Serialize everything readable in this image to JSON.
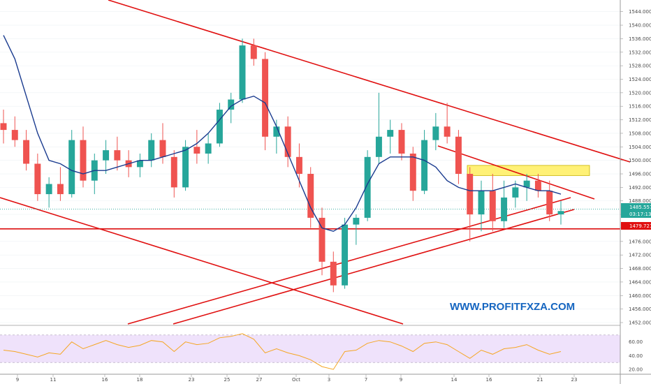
{
  "watermark": "WWW.PROFITFXZA.COM",
  "colors": {
    "up": "#26a69a",
    "down": "#ef5350",
    "ma": "#1a3b8f",
    "trendline": "#e01010",
    "zone": "#fff176",
    "rsi": "#f5a623",
    "rsi_band": "#efe2fb",
    "price_tag": "#26a69a",
    "level_tag": "#e01010"
  },
  "chart_data": {
    "type": "candlestick",
    "price_axis": {
      "ylim": [
        1452,
        1546
      ],
      "ticks": [
        "1544.000",
        "1540.000",
        "1536.000",
        "1532.000",
        "1528.000",
        "1524.000",
        "1520.000",
        "1516.000",
        "1512.000",
        "1508.000",
        "1504.000",
        "1500.000",
        "1496.000",
        "1492.000",
        "1488.000",
        "1484.000",
        "1480.000",
        "1476.000",
        "1472.000",
        "1468.000",
        "1464.000",
        "1460.000",
        "1456.000",
        "1452.000"
      ]
    },
    "rsi_axis": {
      "ylim": [
        15,
        80
      ],
      "ticks": [
        "60.00",
        "40.00",
        "20.00"
      ],
      "band": [
        30,
        70
      ]
    },
    "date_ticks": [
      "9",
      "11",
      "16",
      "18",
      "23",
      "25",
      "27",
      "Oct",
      "3",
      "7",
      "9",
      "14",
      "16",
      "21",
      "23"
    ],
    "last_price": {
      "value": 1485.557,
      "label": "1485.557",
      "countdown": "03:17:13"
    },
    "horizontal_level": {
      "value": 1479.721,
      "label": "1479.721"
    },
    "moving_average": [
      1537,
      1530,
      1519,
      1508,
      1500,
      1499,
      1497,
      1496,
      1497,
      1497,
      1498,
      1499,
      1500,
      1500,
      1501,
      1502,
      1503,
      1505,
      1508,
      1512,
      1516,
      1518,
      1519,
      1517,
      1510,
      1502,
      1494,
      1486,
      1480,
      1479,
      1481,
      1486,
      1493,
      1499,
      1501,
      1501,
      1501,
      1500,
      1498,
      1494,
      1492,
      1491,
      1491,
      1491,
      1492,
      1493,
      1492,
      1491,
      1491,
      1490
    ],
    "candles": [
      [
        1511,
        1515,
        1505,
        1509
      ],
      [
        1509,
        1513,
        1504,
        1506
      ],
      [
        1506,
        1509,
        1497,
        1499
      ],
      [
        1499,
        1502,
        1488,
        1490
      ],
      [
        1490,
        1495,
        1486,
        1493
      ],
      [
        1493,
        1498,
        1488,
        1490
      ],
      [
        1490,
        1509,
        1489,
        1506
      ],
      [
        1506,
        1510,
        1492,
        1494
      ],
      [
        1494,
        1502,
        1490,
        1500
      ],
      [
        1500,
        1506,
        1496,
        1503
      ],
      [
        1503,
        1507,
        1497,
        1500
      ],
      [
        1500,
        1503,
        1495,
        1498
      ],
      [
        1498,
        1502,
        1495,
        1500
      ],
      [
        1500,
        1508,
        1498,
        1506
      ],
      [
        1506,
        1511,
        1499,
        1501
      ],
      [
        1501,
        1503,
        1489,
        1492
      ],
      [
        1492,
        1506,
        1491,
        1504
      ],
      [
        1504,
        1509,
        1499,
        1502
      ],
      [
        1502,
        1508,
        1499,
        1505
      ],
      [
        1505,
        1517,
        1504,
        1515
      ],
      [
        1515,
        1520,
        1511,
        1518
      ],
      [
        1518,
        1536,
        1517,
        1534
      ],
      [
        1534,
        1536,
        1528,
        1530
      ],
      [
        1530,
        1532,
        1503,
        1507
      ],
      [
        1507,
        1512,
        1502,
        1510
      ],
      [
        1510,
        1513,
        1498,
        1501
      ],
      [
        1501,
        1505,
        1492,
        1496
      ],
      [
        1496,
        1498,
        1480,
        1483
      ],
      [
        1483,
        1486,
        1466,
        1470
      ],
      [
        1470,
        1473,
        1461,
        1463
      ],
      [
        1463,
        1483,
        1462,
        1481
      ],
      [
        1481,
        1484,
        1475,
        1483
      ],
      [
        1483,
        1503,
        1482,
        1501
      ],
      [
        1501,
        1520,
        1499,
        1507
      ],
      [
        1507,
        1512,
        1502,
        1509
      ],
      [
        1509,
        1511,
        1500,
        1502
      ],
      [
        1502,
        1504,
        1488,
        1491
      ],
      [
        1491,
        1509,
        1490,
        1506
      ],
      [
        1506,
        1514,
        1503,
        1510
      ],
      [
        1510,
        1517,
        1505,
        1507
      ],
      [
        1507,
        1509,
        1493,
        1496
      ],
      [
        1496,
        1498,
        1476,
        1484
      ],
      [
        1484,
        1494,
        1479,
        1491
      ],
      [
        1491,
        1496,
        1479,
        1482
      ],
      [
        1482,
        1494,
        1480,
        1489
      ],
      [
        1489,
        1494,
        1486,
        1492
      ],
      [
        1492,
        1496,
        1488,
        1494
      ],
      [
        1494,
        1496,
        1489,
        1491
      ],
      [
        1491,
        1494,
        1482,
        1484
      ],
      [
        1484,
        1488,
        1481,
        1485
      ]
    ],
    "rsi": [
      48,
      46,
      42,
      38,
      44,
      42,
      60,
      50,
      56,
      62,
      56,
      52,
      55,
      62,
      60,
      46,
      60,
      56,
      58,
      66,
      68,
      72,
      64,
      44,
      50,
      44,
      40,
      34,
      24,
      20,
      46,
      48,
      58,
      62,
      60,
      54,
      46,
      58,
      60,
      56,
      46,
      36,
      48,
      42,
      50,
      52,
      56,
      48,
      42,
      46
    ]
  }
}
